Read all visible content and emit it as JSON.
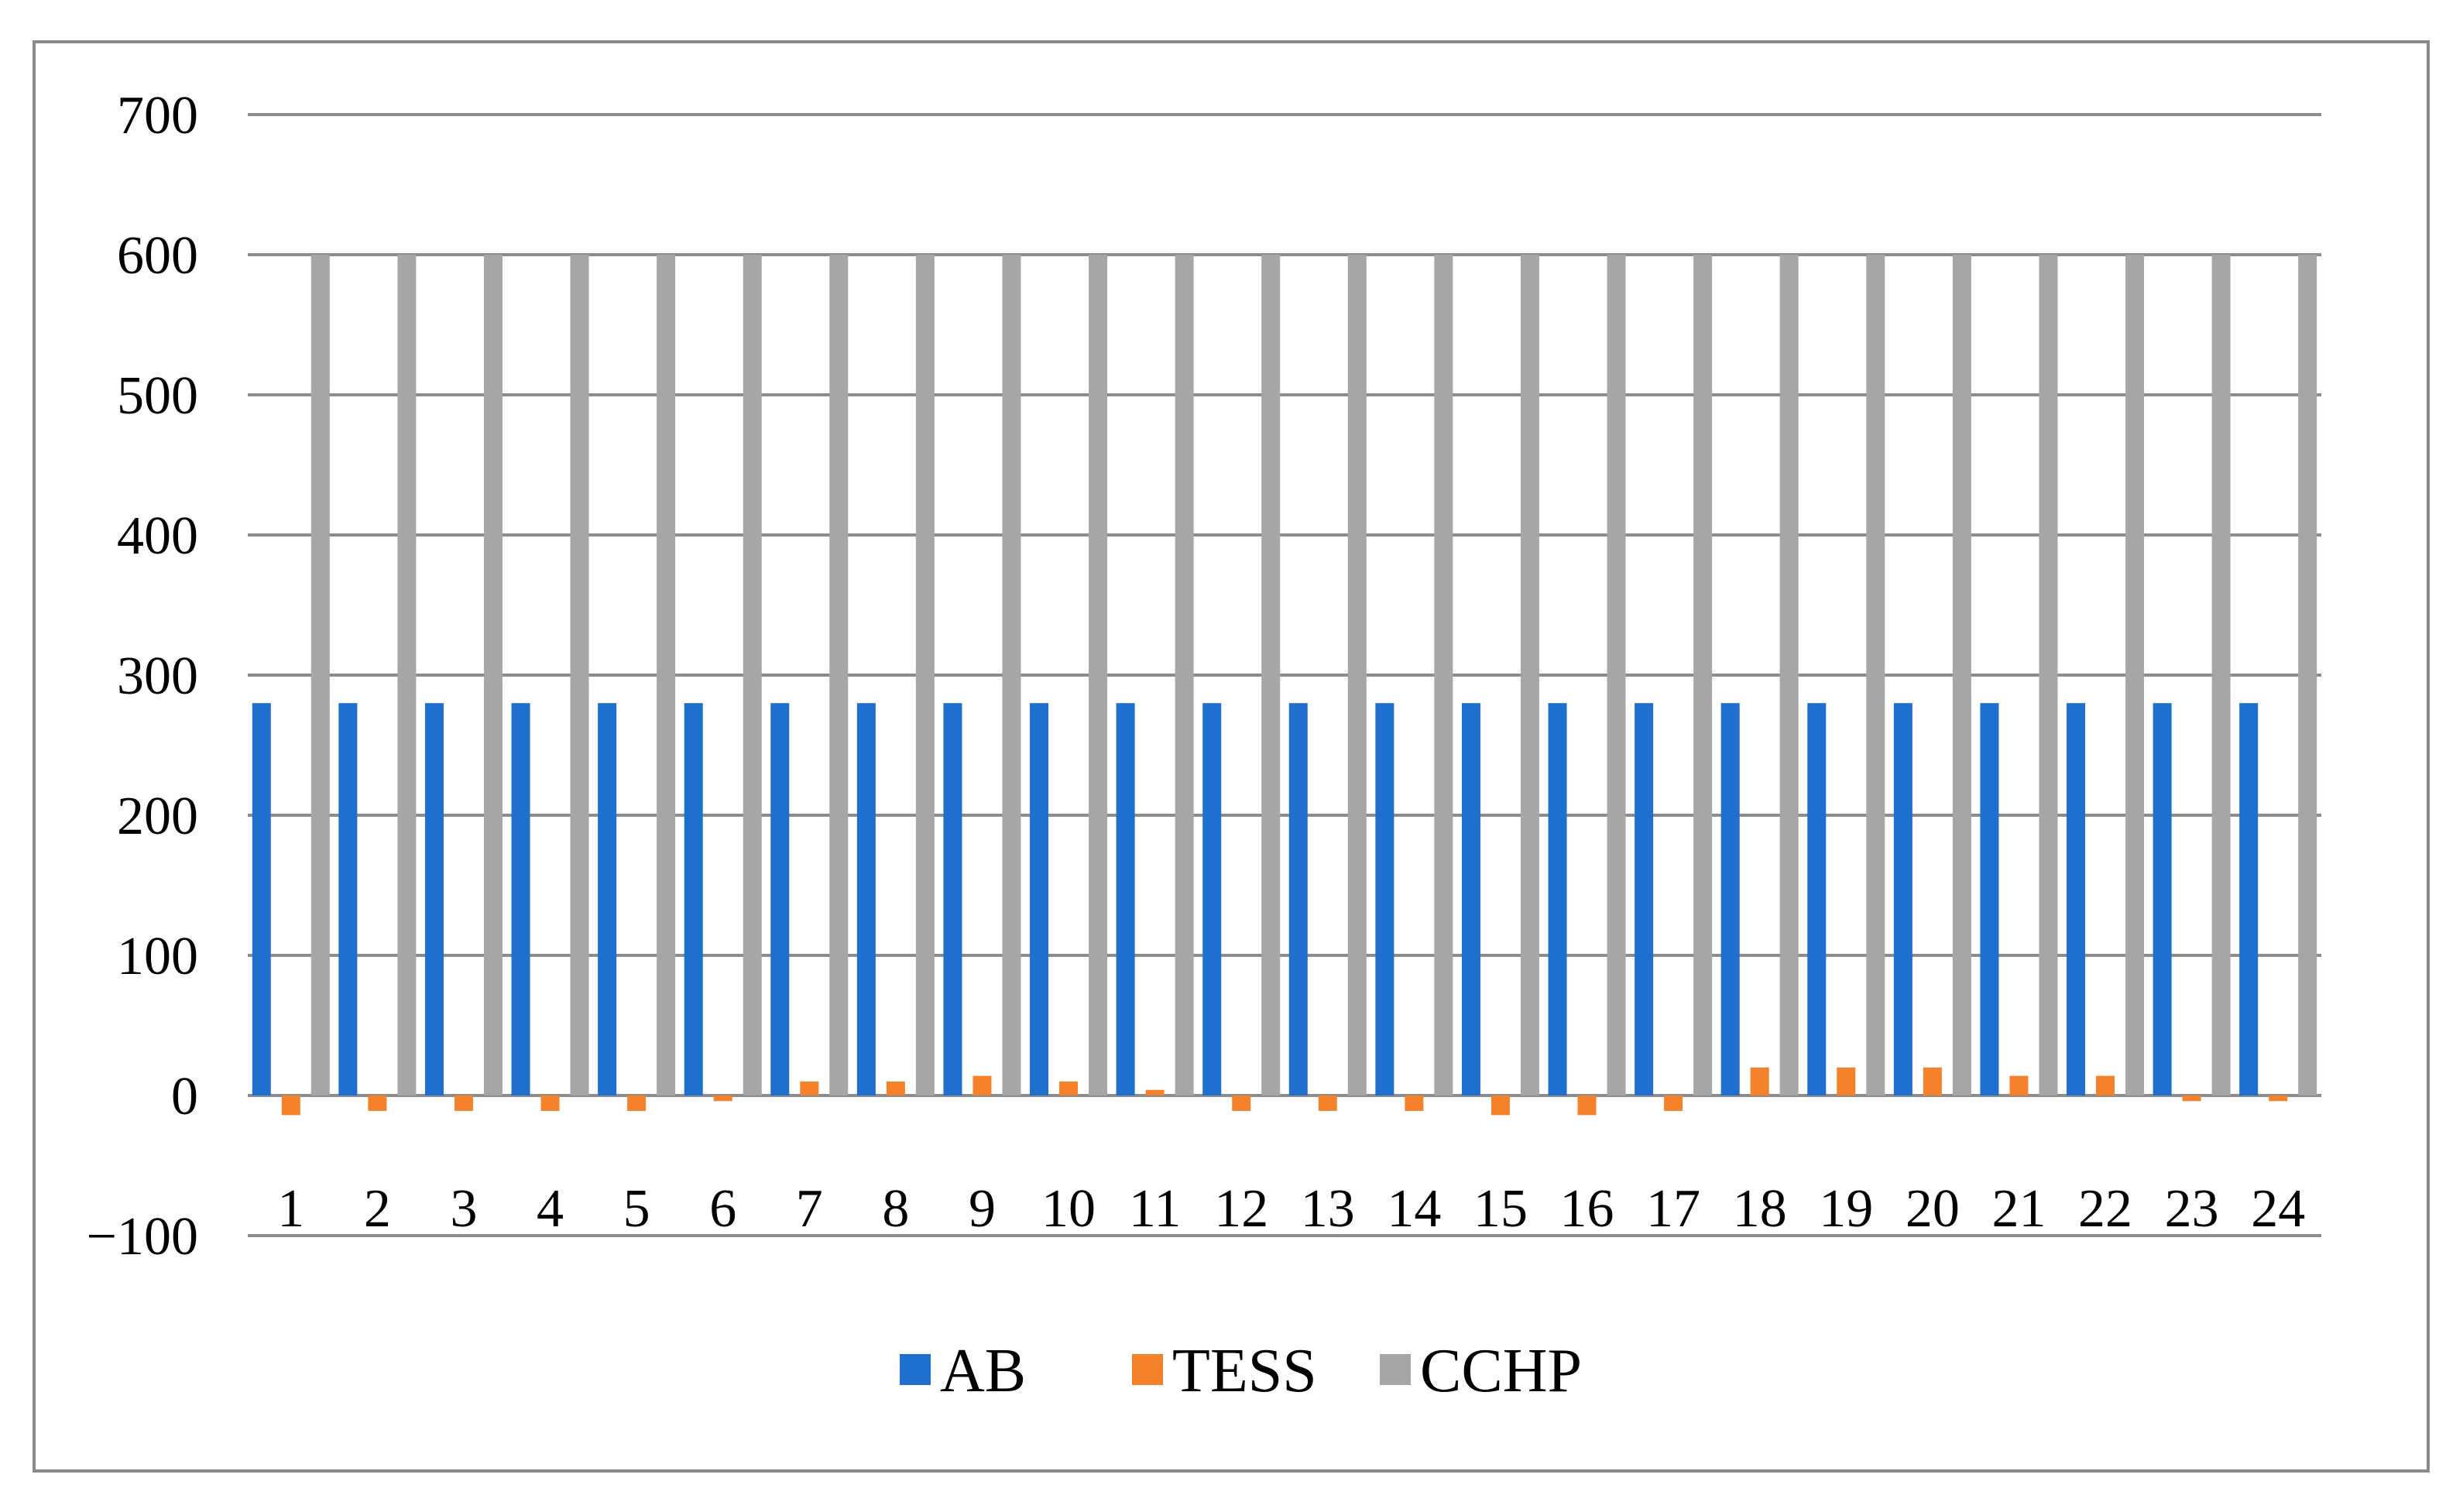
{
  "chart_data": {
    "type": "bar",
    "title": "",
    "xlabel": "",
    "ylabel": "",
    "ylim": [
      -100,
      700
    ],
    "yticks": [
      -100,
      0,
      100,
      200,
      300,
      400,
      500,
      600,
      700
    ],
    "ytick_labels": [
      "−100",
      "0",
      "100",
      "200",
      "300",
      "400",
      "500",
      "600",
      "700"
    ],
    "categories": [
      "1",
      "2",
      "3",
      "4",
      "5",
      "6",
      "7",
      "8",
      "9",
      "10",
      "11",
      "12",
      "13",
      "14",
      "15",
      "16",
      "17",
      "18",
      "19",
      "20",
      "21",
      "22",
      "23",
      "24"
    ],
    "series": [
      {
        "name": "AB",
        "color": "#1f6fce",
        "values": [
          280,
          280,
          280,
          280,
          280,
          280,
          280,
          280,
          280,
          280,
          280,
          280,
          280,
          280,
          280,
          280,
          280,
          280,
          280,
          280,
          280,
          280,
          280,
          280
        ]
      },
      {
        "name": "TESS",
        "color": "#f5822a",
        "values": [
          -14,
          -11,
          -11,
          -11,
          -11,
          -4,
          10,
          10,
          14,
          10,
          4,
          -11,
          -11,
          -11,
          -14,
          -14,
          -11,
          20,
          20,
          20,
          14,
          14,
          -4,
          -4
        ]
      },
      {
        "name": "CCHP",
        "color": "#a6a6a6",
        "values": [
          600,
          600,
          600,
          600,
          600,
          600,
          600,
          600,
          600,
          600,
          600,
          600,
          600,
          600,
          600,
          600,
          600,
          600,
          600,
          600,
          600,
          600,
          600,
          600
        ]
      }
    ],
    "grid": true,
    "gridline_color": "#8c8c8c",
    "legend_position": "bottom-center"
  }
}
